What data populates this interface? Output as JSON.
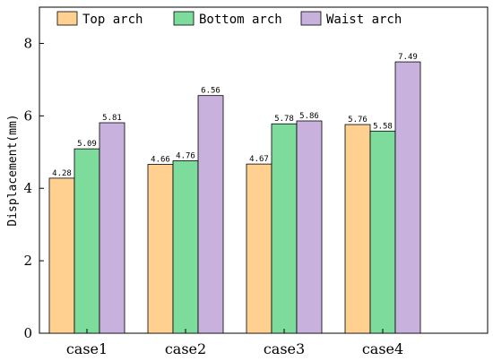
{
  "chart_data": {
    "type": "bar",
    "title": "",
    "xlabel": "",
    "ylabel": "Displacement(mm)",
    "categories": [
      "case1",
      "case2",
      "case3",
      "case4"
    ],
    "series": [
      {
        "name": "Top arch",
        "color": "#FFD08F",
        "values": [
          4.28,
          4.66,
          4.67,
          5.76
        ]
      },
      {
        "name": "Bottom arch",
        "color": "#7DDB9C",
        "values": [
          5.09,
          4.76,
          5.78,
          5.58
        ]
      },
      {
        "name": "Waist arch",
        "color": "#C9B1DE",
        "values": [
          5.81,
          6.56,
          5.86,
          7.49
        ]
      }
    ],
    "ylim": [
      0,
      9
    ],
    "yticks": [
      0,
      2,
      4,
      6,
      8
    ],
    "value_labels": true,
    "legend_position": "top",
    "grid": false
  }
}
